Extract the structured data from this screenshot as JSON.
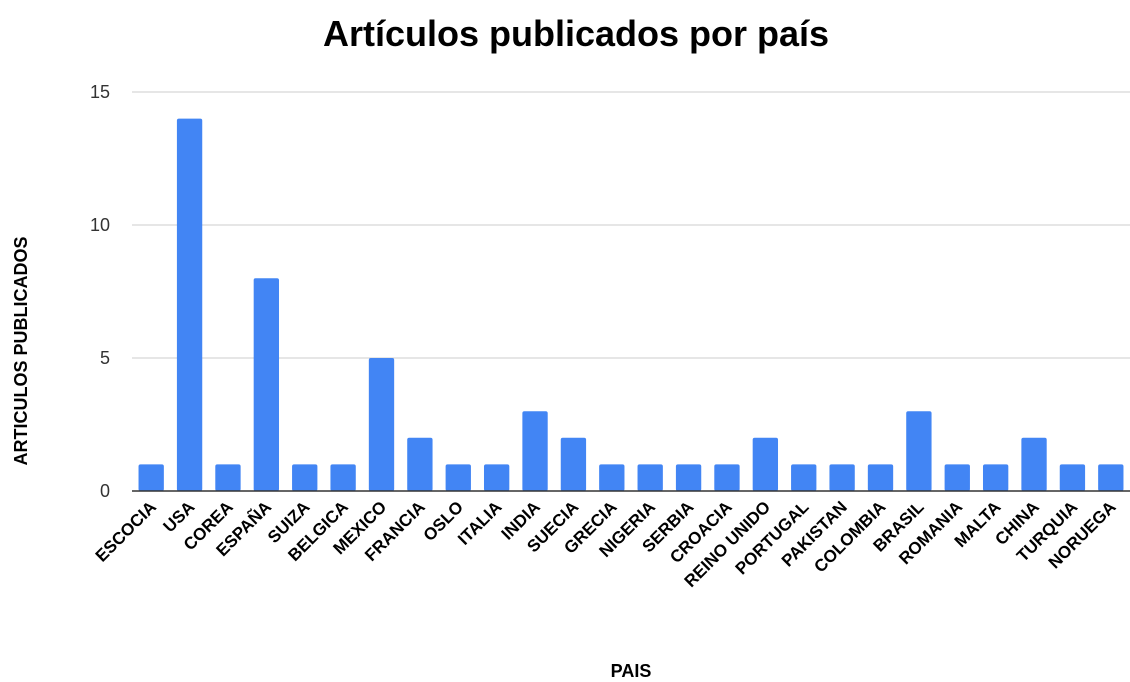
{
  "chart_data": {
    "type": "bar",
    "title": "Artículos publicados por país",
    "xlabel": "PAIS",
    "ylabel": "ARTICULOS PUBLICADOS",
    "ylim": [
      0,
      15
    ],
    "yticks": [
      0,
      5,
      10,
      15
    ],
    "grid": true,
    "bar_color": "#4285f4",
    "categories": [
      "ESCOCIA",
      "USA",
      "COREA",
      "ESPAÑA",
      "SUIZA",
      "BELGICA",
      "MEXICO",
      "FRANCIA",
      "OSLO",
      "ITALIA",
      "INDIA",
      "SUECIA",
      "GRECIA",
      "NIGERIA",
      "SERBIA",
      "CROACIA",
      "REINO UNIDO",
      "PORTUGAL",
      "PAKISTAN",
      "COLOMBIA",
      "BRASIL",
      "ROMANIA",
      "MALTA",
      "CHINA",
      "TURQUIA",
      "NORUEGA"
    ],
    "values": [
      1,
      14,
      1,
      8,
      1,
      1,
      5,
      2,
      1,
      1,
      3,
      2,
      1,
      1,
      1,
      1,
      2,
      1,
      1,
      1,
      3,
      1,
      1,
      2,
      1,
      1
    ]
  }
}
